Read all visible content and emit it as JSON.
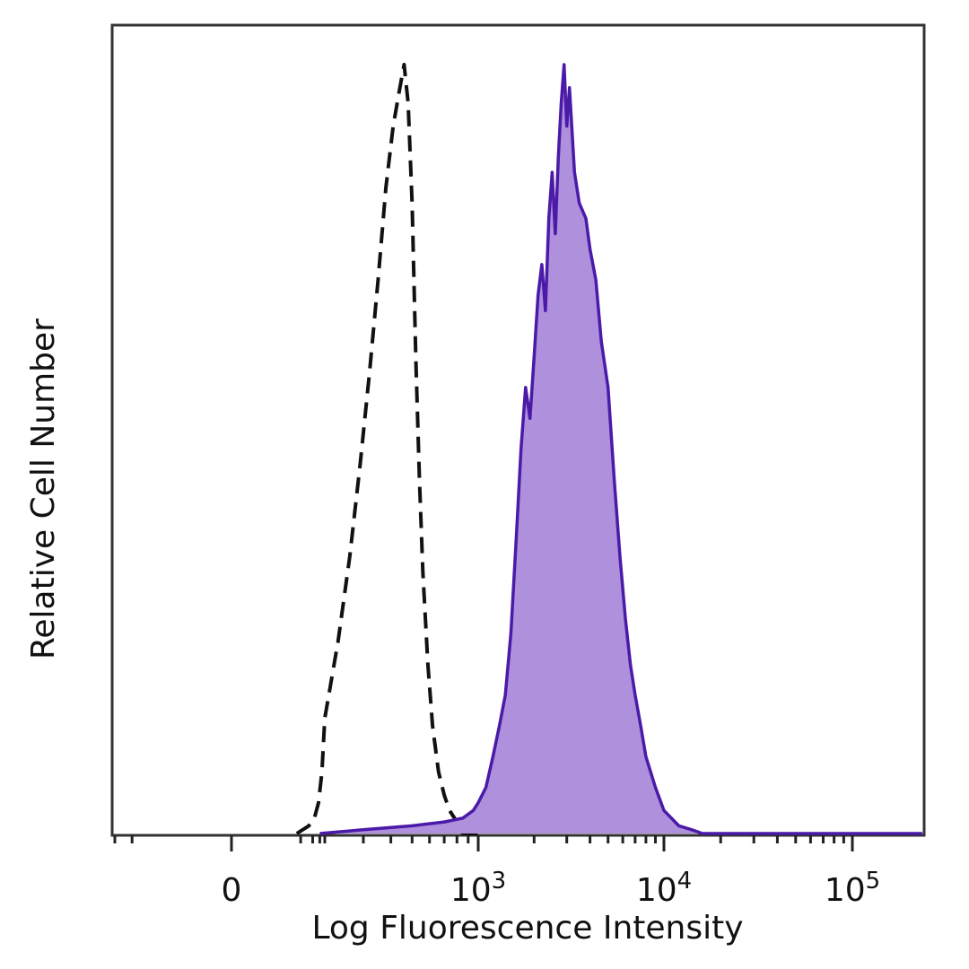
{
  "chart_data": {
    "type": "area",
    "xlabel": "Log Fluorescence Intensity",
    "ylabel": "Relative Cell Number",
    "x_scale": "biexponential",
    "xlim": [
      -100,
      200000
    ],
    "ylim": [
      0,
      100
    ],
    "grid": false,
    "legend": "none",
    "x_ticks": [
      {
        "value": 0,
        "base": "0",
        "exp": ""
      },
      {
        "value": 1000,
        "base": "10",
        "exp": "3"
      },
      {
        "value": 10000,
        "base": "10",
        "exp": "4"
      },
      {
        "value": 100000,
        "base": "10",
        "exp": "5"
      }
    ],
    "series": [
      {
        "style": "dashed",
        "color": "#111111",
        "fill": "none",
        "points": [
          [
            40,
            0
          ],
          [
            80,
            1
          ],
          [
            110,
            2
          ],
          [
            140,
            4
          ],
          [
            170,
            8
          ],
          [
            200,
            15
          ],
          [
            230,
            25
          ],
          [
            260,
            36
          ],
          [
            290,
            48
          ],
          [
            320,
            60
          ],
          [
            350,
            72
          ],
          [
            380,
            84
          ],
          [
            410,
            92
          ],
          [
            440,
            97
          ],
          [
            460,
            100
          ],
          [
            480,
            95
          ],
          [
            500,
            82
          ],
          [
            520,
            62
          ],
          [
            540,
            46
          ],
          [
            560,
            34
          ],
          [
            590,
            22
          ],
          [
            620,
            14
          ],
          [
            660,
            8
          ],
          [
            700,
            5
          ],
          [
            740,
            3
          ],
          [
            780,
            2
          ],
          [
            800,
            1
          ],
          [
            850,
            0
          ],
          [
            1000,
            0
          ]
        ]
      },
      {
        "style": "solid",
        "color": "#4b1aa8",
        "fill": "#ae90dd",
        "points": [
          [
            150,
            0
          ],
          [
            300,
            0.5
          ],
          [
            500,
            1
          ],
          [
            700,
            1.5
          ],
          [
            850,
            2
          ],
          [
            950,
            3
          ],
          [
            1000,
            4
          ],
          [
            1100,
            6
          ],
          [
            1200,
            10
          ],
          [
            1300,
            14
          ],
          [
            1400,
            18
          ],
          [
            1500,
            26
          ],
          [
            1600,
            38
          ],
          [
            1700,
            50
          ],
          [
            1800,
            58
          ],
          [
            1900,
            54
          ],
          [
            2000,
            62
          ],
          [
            2100,
            70
          ],
          [
            2200,
            74
          ],
          [
            2300,
            68
          ],
          [
            2400,
            80
          ],
          [
            2500,
            86
          ],
          [
            2600,
            78
          ],
          [
            2700,
            88
          ],
          [
            2800,
            95
          ],
          [
            2900,
            100
          ],
          [
            3000,
            92
          ],
          [
            3100,
            97
          ],
          [
            3300,
            86
          ],
          [
            3500,
            82
          ],
          [
            3800,
            80
          ],
          [
            4000,
            76
          ],
          [
            4300,
            72
          ],
          [
            4600,
            64
          ],
          [
            5000,
            58
          ],
          [
            5400,
            46
          ],
          [
            5800,
            36
          ],
          [
            6200,
            28
          ],
          [
            6600,
            22
          ],
          [
            7000,
            18
          ],
          [
            7500,
            14
          ],
          [
            8000,
            10
          ],
          [
            9000,
            6
          ],
          [
            10000,
            3
          ],
          [
            12000,
            1
          ],
          [
            14000,
            0.5
          ],
          [
            16000,
            0
          ],
          [
            200000,
            0
          ]
        ]
      }
    ]
  }
}
